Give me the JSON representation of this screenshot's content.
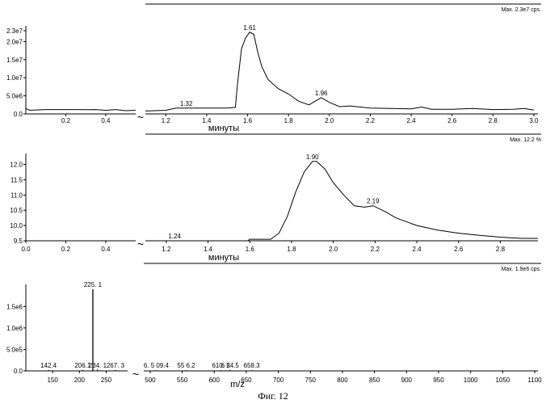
{
  "caption": "Фиг. 12",
  "chart_data": [
    {
      "type": "line",
      "title": "",
      "xlabel": "минуты",
      "ylabel": "",
      "max_label": "Max. 2.3e7 cps.",
      "ylim": [
        0,
        23000000
      ],
      "yticks": [
        {
          "v": 0,
          "label": "0.0"
        },
        {
          "v": 5000000,
          "label": "5.0e6"
        },
        {
          "v": 10000000,
          "label": "1.0e7"
        },
        {
          "v": 15000000,
          "label": "1.5e7"
        },
        {
          "v": 20000000,
          "label": "2.0e7"
        },
        {
          "v": 23000000,
          "label": "2.3e7"
        }
      ],
      "left_xlim": [
        0,
        0.55
      ],
      "left_xticks": [
        {
          "v": 0.2,
          "label": "0.2"
        },
        {
          "v": 0.4,
          "label": "0.4"
        }
      ],
      "right_xlim": [
        1.1,
        3.02
      ],
      "right_xticks": [
        {
          "v": 1.2,
          "label": "1.2"
        },
        {
          "v": 1.4,
          "label": "1.4"
        },
        {
          "v": 1.6,
          "label": "1.6"
        },
        {
          "v": 1.8,
          "label": "1.8"
        },
        {
          "v": 2.0,
          "label": "2.0"
        },
        {
          "v": 2.2,
          "label": "2.2"
        },
        {
          "v": 2.4,
          "label": "2.4"
        },
        {
          "v": 2.6,
          "label": "2.6"
        },
        {
          "v": 2.8,
          "label": "2.8"
        },
        {
          "v": 3.0,
          "label": "3.0"
        }
      ],
      "break_symbol": "~",
      "left_series": {
        "x": [
          0,
          0.02,
          0.05,
          0.1,
          0.15,
          0.2,
          0.25,
          0.3,
          0.35,
          0.4,
          0.45,
          0.5,
          0.55
        ],
        "y": [
          1500000,
          1000000,
          1100000,
          1200000,
          1200000,
          1200000,
          1200000,
          1150000,
          1200000,
          1000000,
          1200000,
          900000,
          1000000
        ]
      },
      "right_series": {
        "x": [
          1.1,
          1.2,
          1.25,
          1.3,
          1.35,
          1.4,
          1.45,
          1.5,
          1.54,
          1.55,
          1.57,
          1.59,
          1.61,
          1.63,
          1.65,
          1.67,
          1.7,
          1.75,
          1.8,
          1.85,
          1.9,
          1.93,
          1.96,
          2.0,
          2.05,
          2.1,
          2.2,
          2.3,
          2.4,
          2.45,
          2.5,
          2.6,
          2.7,
          2.8,
          2.9,
          2.95,
          3.0
        ],
        "y": [
          800000,
          1000000,
          1600000,
          1600000,
          1600000,
          1600000,
          1600000,
          1600000,
          1800000,
          8000000,
          18000000,
          21000000,
          22600000,
          22000000,
          17000000,
          13000000,
          9500000,
          7000000,
          5500000,
          3500000,
          2500000,
          3500000,
          4500000,
          3200000,
          2000000,
          2200000,
          1600000,
          1500000,
          1400000,
          1900000,
          1300000,
          1300000,
          1500000,
          1200000,
          1300000,
          1500000,
          1100000
        ]
      },
      "annotations": [
        {
          "x": 1.61,
          "y": 22600000,
          "label": "1.61"
        },
        {
          "x": 1.96,
          "y": 4500000,
          "label": "1.96"
        },
        {
          "x": 1.3,
          "y": 1600000,
          "label": "1.32"
        }
      ]
    },
    {
      "type": "line",
      "title": "",
      "xlabel": "минуты",
      "ylabel": "",
      "max_label": "Max. 12.2 %",
      "ylim": [
        9.5,
        12.2
      ],
      "yticks": [
        {
          "v": 9.5,
          "label": "9.5"
        },
        {
          "v": 10.0,
          "label": "10.0"
        },
        {
          "v": 10.5,
          "label": "10.5"
        },
        {
          "v": 11.0,
          "label": "11.0"
        },
        {
          "v": 11.5,
          "label": "11.5"
        },
        {
          "v": 12.0,
          "label": "12.0"
        }
      ],
      "left_xlim": [
        0,
        0.55
      ],
      "left_xticks": [
        {
          "v": 0.0,
          "label": "0.0"
        },
        {
          "v": 0.2,
          "label": "0.2"
        },
        {
          "v": 0.4,
          "label": "0.4"
        }
      ],
      "right_xlim": [
        1.1,
        2.98
      ],
      "right_xticks": [
        {
          "v": 1.2,
          "label": "1.2"
        },
        {
          "v": 1.4,
          "label": "1.4"
        },
        {
          "v": 1.6,
          "label": "1.6"
        },
        {
          "v": 1.8,
          "label": "1.8"
        },
        {
          "v": 2.0,
          "label": "2.0"
        },
        {
          "v": 2.2,
          "label": "2.2"
        },
        {
          "v": 2.4,
          "label": "2.4"
        },
        {
          "v": 2.6,
          "label": "2.6"
        },
        {
          "v": 2.8,
          "label": "2.8"
        }
      ],
      "break_symbol": "~",
      "left_series": {
        "x": [
          0,
          0.55
        ],
        "y": [
          9.5,
          9.5
        ]
      },
      "right_series": {
        "x": [
          1.1,
          1.24,
          1.5,
          1.59,
          1.6,
          1.7,
          1.74,
          1.78,
          1.82,
          1.86,
          1.9,
          1.92,
          1.96,
          2.0,
          2.05,
          2.1,
          2.15,
          2.19,
          2.25,
          2.3,
          2.4,
          2.5,
          2.6,
          2.7,
          2.8,
          2.9,
          2.98
        ],
        "y": [
          9.5,
          9.5,
          9.5,
          9.5,
          9.55,
          9.55,
          9.75,
          10.3,
          11.1,
          11.75,
          12.1,
          12.1,
          11.85,
          11.4,
          11.0,
          10.65,
          10.6,
          10.65,
          10.45,
          10.25,
          10.0,
          9.85,
          9.75,
          9.68,
          9.62,
          9.58,
          9.58
        ]
      },
      "annotations": [
        {
          "x": 1.9,
          "y": 12.1,
          "label": "1.90"
        },
        {
          "x": 2.19,
          "y": 10.65,
          "label": "2.19"
        },
        {
          "x": 1.24,
          "y": 9.5,
          "label": "1.24"
        }
      ]
    },
    {
      "type": "bar",
      "title": "",
      "xlabel": "m/z",
      "ylabel": "",
      "max_label": "Max. 1.9e6 cps.",
      "ylim": [
        0,
        1900000
      ],
      "yticks": [
        {
          "v": 0,
          "label": "0.0"
        },
        {
          "v": 500000,
          "label": "5.0e5"
        },
        {
          "v": 1000000,
          "label": "1.0e6"
        },
        {
          "v": 1500000,
          "label": "1.5e6"
        }
      ],
      "left_xlim": [
        100,
        290
      ],
      "left_xticks": [
        {
          "v": 150,
          "label": "150"
        },
        {
          "v": 200,
          "label": "200"
        },
        {
          "v": 250,
          "label": "250"
        }
      ],
      "right_xlim": [
        490,
        1105
      ],
      "right_xticks": [
        {
          "v": 500,
          "label": "500"
        },
        {
          "v": 550,
          "label": "550"
        },
        {
          "v": 600,
          "label": "600"
        },
        {
          "v": 650,
          "label": "650"
        },
        {
          "v": 700,
          "label": "700"
        },
        {
          "v": 750,
          "label": "750"
        },
        {
          "v": 800,
          "label": "800"
        },
        {
          "v": 850,
          "label": "850"
        },
        {
          "v": 900,
          "label": "900"
        },
        {
          "v": 950,
          "label": "950"
        },
        {
          "v": 1000,
          "label": "1000"
        },
        {
          "v": 1050,
          "label": "1050"
        },
        {
          "v": 1100,
          "label": "1100"
        }
      ],
      "break_symbol": "~",
      "peaks": [
        {
          "x": 142.4,
          "y": 20000,
          "label": "142.4"
        },
        {
          "x": 206.1,
          "y": 20000,
          "label": "206.1"
        },
        {
          "x": 225.1,
          "y": 1900000,
          "label": "225. 1"
        },
        {
          "x": 234.1,
          "y": 30000,
          "label": "234. 1"
        },
        {
          "x": 267.3,
          "y": 20000,
          "label": "267. 3"
        },
        {
          "x": 509.4,
          "y": 15000,
          "label": "6. 5 09.4"
        },
        {
          "x": 556.2,
          "y": 15000,
          "label": "55 6.2"
        },
        {
          "x": 610.5,
          "y": 15000,
          "label": "610. 5"
        },
        {
          "x": 624.5,
          "y": 20000,
          "label": "6 24.5"
        },
        {
          "x": 658.3,
          "y": 15000,
          "label": "658.3"
        }
      ]
    }
  ]
}
